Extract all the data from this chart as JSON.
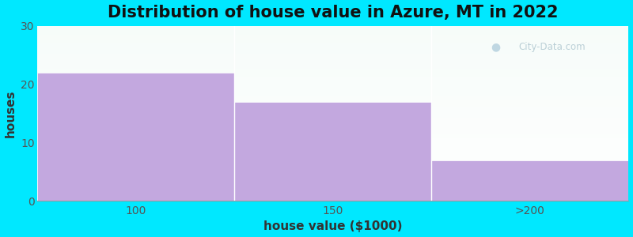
{
  "title": "Distribution of house value in Azure, MT in 2022",
  "categories": [
    "100",
    "150",
    ">200"
  ],
  "values": [
    22,
    17,
    7
  ],
  "bar_color": "#c3a8df",
  "xlabel": "house value ($1000)",
  "ylabel": "houses",
  "ylim": [
    0,
    30
  ],
  "yticks": [
    0,
    10,
    20,
    30
  ],
  "background_outer": "#00e8ff",
  "title_fontsize": 15,
  "axis_label_fontsize": 11,
  "tick_fontsize": 10,
  "watermark_text": "City-Data.com",
  "n_bars": 3
}
